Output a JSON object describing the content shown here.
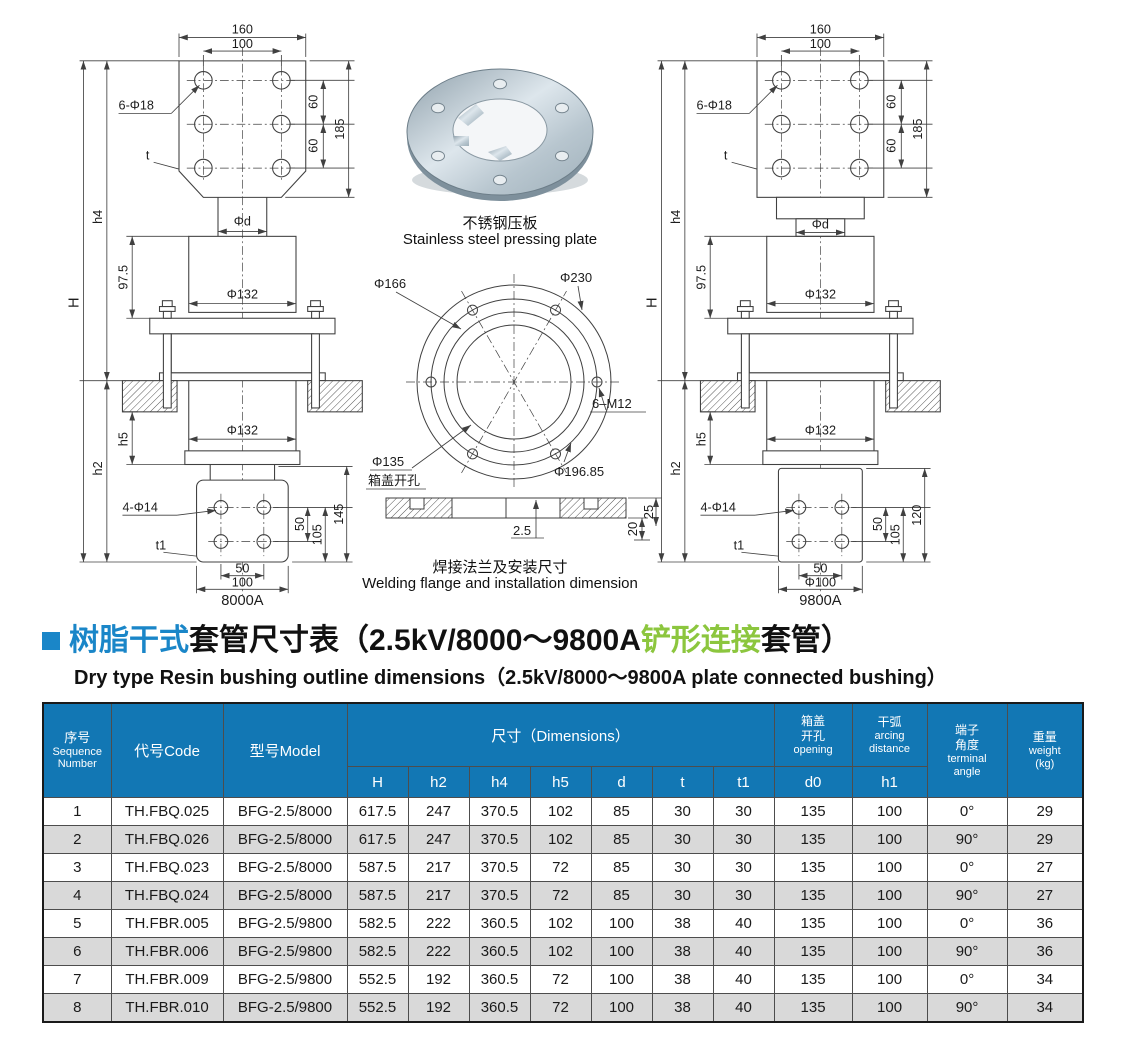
{
  "colors": {
    "header_blue": "#1277b4",
    "title_blue": "#1a86c8",
    "title_green": "#8cc63e",
    "row_alt": "#d9d9d9"
  },
  "drawing_left": {
    "name_label": "8000A",
    "dim_160": "160",
    "dim_100": "100",
    "holes_label": "6-Φ18",
    "t_label": "t",
    "dim_60a": "60",
    "dim_60b": "60",
    "dim_185": "185",
    "H": "H",
    "h4": "h4",
    "dim_975": "97.5",
    "h2": "h2",
    "h5": "h5",
    "phi_d": "Φd",
    "phi_132_upper": "Φ132",
    "phi_132_lower": "Φ132",
    "holes_bottom_label": "4-Φ14",
    "t1_label": "t1",
    "dim_50_side": "50",
    "dim_105": "105",
    "dim_145": "145",
    "dim_50_bottom": "50",
    "dim_100_bottom": "100"
  },
  "drawing_right": {
    "name_label": "9800A",
    "dim_160": "160",
    "dim_100": "100",
    "holes_label": "6-Φ18",
    "t_label": "t",
    "dim_60a": "60",
    "dim_60b": "60",
    "dim_185": "185",
    "H": "H",
    "h4": "h4",
    "dim_975": "97.5",
    "h2": "h2",
    "h5": "h5",
    "phi_d": "Φd",
    "phi_132_upper": "Φ132",
    "phi_132_lower": "Φ132",
    "holes_bottom_label": "4-Φ14",
    "t1_label": "t1",
    "dim_50_side": "50",
    "dim_105": "105",
    "dim_120": "120",
    "dim_50_bottom": "50",
    "dim_100_bottom": "Φ100"
  },
  "middle": {
    "photo_caption_zh": "不锈钢压板",
    "photo_caption_en": "Stainless steel pressing plate",
    "flange": {
      "phi166": "Φ166",
      "phi230": "Φ230",
      "m12": "6–M12",
      "phi135": "Φ135",
      "phi135_note": "箱盖开孔",
      "phi19685": "Φ196.85"
    },
    "section": {
      "dim_2_5": "2.5",
      "dim_20": "20",
      "dim_25": "25"
    },
    "section_caption_zh": "焊接法兰及安装尺寸",
    "section_caption_en": "Welding flange and installation dimension"
  },
  "title": {
    "zh_blue": "树脂干式",
    "zh_black1": "套管尺寸表（2.5kV/8000～9800A",
    "zh_green": "铲形连接",
    "zh_black2": "套管）",
    "en": "Dry type Resin bushing outline dimensions（2.5kV/8000～9800A plate connected bushing）"
  },
  "table": {
    "header": {
      "seq_zh": "序号",
      "seq_en1": "Sequence",
      "seq_en2": "Number",
      "code": "代号Code",
      "model": "型号Model",
      "dims": "尺寸（Dimensions）",
      "dim_cols": [
        "H",
        "h2",
        "h4",
        "h5",
        "d",
        "t",
        "t1"
      ],
      "opening_zh1": "箱盖",
      "opening_zh2": "开孔",
      "opening_en": "opening",
      "d0": "d0",
      "arc_zh": "干弧",
      "arc_en1": "arcing",
      "arc_en2": "distance",
      "h1": "h1",
      "angle_zh1": "端子",
      "angle_zh2": "角度",
      "angle_en1": "terminal",
      "angle_en2": "angle",
      "weight_zh": "重量",
      "weight_en": "weight",
      "weight_unit": "(kg)"
    },
    "rows": [
      [
        "1",
        "TH.FBQ.025",
        "BFG-2.5/8000",
        "617.5",
        "247",
        "370.5",
        "102",
        "85",
        "30",
        "30",
        "135",
        "100",
        "0°",
        "29"
      ],
      [
        "2",
        "TH.FBQ.026",
        "BFG-2.5/8000",
        "617.5",
        "247",
        "370.5",
        "102",
        "85",
        "30",
        "30",
        "135",
        "100",
        "90°",
        "29"
      ],
      [
        "3",
        "TH.FBQ.023",
        "BFG-2.5/8000",
        "587.5",
        "217",
        "370.5",
        "72",
        "85",
        "30",
        "30",
        "135",
        "100",
        "0°",
        "27"
      ],
      [
        "4",
        "TH.FBQ.024",
        "BFG-2.5/8000",
        "587.5",
        "217",
        "370.5",
        "72",
        "85",
        "30",
        "30",
        "135",
        "100",
        "90°",
        "27"
      ],
      [
        "5",
        "TH.FBR.005",
        "BFG-2.5/9800",
        "582.5",
        "222",
        "360.5",
        "102",
        "100",
        "38",
        "40",
        "135",
        "100",
        "0°",
        "36"
      ],
      [
        "6",
        "TH.FBR.006",
        "BFG-2.5/9800",
        "582.5",
        "222",
        "360.5",
        "102",
        "100",
        "38",
        "40",
        "135",
        "100",
        "90°",
        "36"
      ],
      [
        "7",
        "TH.FBR.009",
        "BFG-2.5/9800",
        "552.5",
        "192",
        "360.5",
        "72",
        "100",
        "38",
        "40",
        "135",
        "100",
        "0°",
        "34"
      ],
      [
        "8",
        "TH.FBR.010",
        "BFG-2.5/9800",
        "552.5",
        "192",
        "360.5",
        "72",
        "100",
        "38",
        "40",
        "135",
        "100",
        "90°",
        "34"
      ]
    ]
  }
}
